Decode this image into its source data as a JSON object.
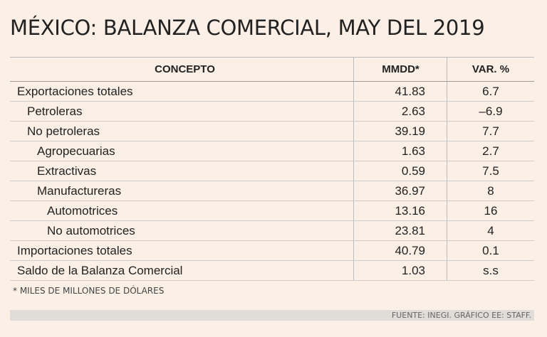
{
  "header": {
    "title": "MÉXICO: BALANZA COMERCIAL, MAY DEL 2019"
  },
  "table": {
    "columns": [
      "CONCEPTO",
      "MMDD*",
      "VAR. %"
    ],
    "rows": [
      [
        "Exportaciones totales",
        "41.83",
        "6.7"
      ],
      [
        "Petroleras",
        "2.63",
        "–6.9"
      ],
      [
        "No petroleras",
        "39.19",
        "7.7"
      ],
      [
        "Agropecuarias",
        "1.63",
        "2.7"
      ],
      [
        "Extractivas",
        "0.59",
        "7.5"
      ],
      [
        "Manufactureras",
        "36.97",
        "8"
      ],
      [
        "Automotrices",
        "13.16",
        "16"
      ],
      [
        "No automotrices",
        "23.81",
        "4"
      ],
      [
        "Importaciones totales",
        "40.79",
        "0.1"
      ],
      [
        "Saldo de la Balanza Comercial",
        "1.03",
        "s.s"
      ]
    ]
  },
  "footnote": "* MILES DE MILLONES DE DÓLARES",
  "source": "FUENTE: INEGI. GRÁFICO EE: STAFF."
}
